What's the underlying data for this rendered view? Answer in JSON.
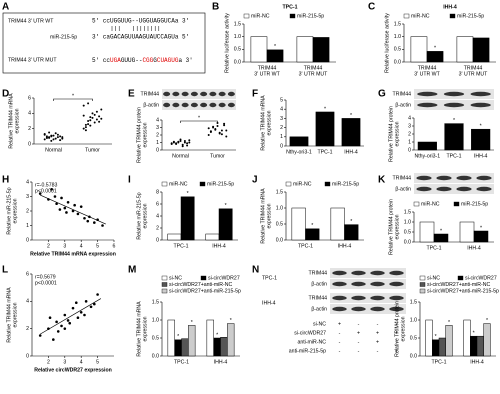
{
  "sequence_panel": {
    "label": "A",
    "wt_name": "TRIM44 3' UTR WT",
    "wt_sequence": "5' ccUGGUUG--UGGUAGGUCAa 3'",
    "mir_name": "miR-215-5p",
    "mir_sequence": "3' caGACAGUUAAGUAUCCAGUa 5'",
    "mut_name": "TRIM44 3' UTR MUT",
    "mut_sequence": [
      {
        "text": "5' cc"
      },
      {
        "text": "UGA",
        "mutated": true
      },
      {
        "text": "GUUG--"
      },
      {
        "text": "CGG",
        "mutated": true
      },
      {
        "text": "G"
      },
      {
        "text": "CUAGUG",
        "mutated": true
      },
      {
        "text": "a 3'"
      }
    ]
  },
  "chart_data": [
    {
      "type": "bar",
      "label": "B",
      "title": "TPC-1",
      "ylabel": [
        "Relative luciferase activity"
      ],
      "categories": [
        [
          "TRIM44",
          "3' UTR WT"
        ],
        [
          "TRIM44",
          "3' UTR MUT"
        ]
      ],
      "series": [
        {
          "name": "miR-NC",
          "color": "#ffffff",
          "values": [
            1.0,
            1.0
          ]
        },
        {
          "name": "miR-215-5p",
          "color": "#000000",
          "values": [
            0.48,
            0.97
          ],
          "significance": [
            "*",
            null
          ]
        }
      ],
      "ylim": [
        0,
        1.5
      ],
      "yticks": [
        {
          "value": 0,
          "label": "0.0"
        },
        0.5,
        {
          "value": 1,
          "label": "1.0"
        },
        1.5
      ]
    },
    {
      "type": "bar",
      "label": "C",
      "title": "IHH-4",
      "ylabel": [
        "Relative luciferase activity"
      ],
      "categories": [
        [
          "TRIM44",
          "3' UTR WT"
        ],
        [
          "TRIM44",
          "3' UTR MUT"
        ]
      ],
      "series": [
        {
          "name": "miR-NC",
          "color": "#ffffff",
          "values": [
            1.0,
            1.0
          ]
        },
        {
          "name": "miR-215-5p",
          "color": "#000000",
          "values": [
            0.42,
            0.95
          ],
          "significance": [
            "*",
            null
          ]
        }
      ],
      "ylim": [
        0,
        1.5
      ],
      "yticks": [
        {
          "value": 0,
          "label": "0.0"
        },
        0.5,
        {
          "value": 1,
          "label": "1.0"
        },
        1.5
      ]
    },
    {
      "type": "strip",
      "label": "D",
      "ylabel": [
        "Relative TRIM44 mRNA",
        "expression"
      ],
      "categories": [
        "Normal",
        "Tumor"
      ],
      "values": [
        [
          0.6,
          0.8,
          0.9,
          1.0,
          1.1,
          0.7,
          1.2,
          0.5,
          0.9,
          1.3,
          1.0,
          0.8,
          1.1,
          0.6,
          1.4,
          0.9,
          1.0,
          0.7,
          1.2,
          0.8,
          1.5,
          0.4
        ],
        [
          2.0,
          2.5,
          3.0,
          3.5,
          4.0,
          2.8,
          3.2,
          3.6,
          4.5,
          5.0,
          2.2,
          2.6,
          3.1,
          3.4,
          3.8,
          4.2,
          2.9,
          3.3,
          3.7,
          1.8,
          5.3,
          2.4
        ]
      ],
      "color": "#000000",
      "significance": "*",
      "ylim": [
        0,
        6
      ],
      "yticks": [
        0,
        2,
        4,
        6
      ]
    },
    {
      "type": "strip",
      "label": "E",
      "ylabel": [
        "Relative TRIM44 protein",
        "expression"
      ],
      "blot_rows": [
        "TRIM44",
        "β-actin"
      ],
      "categories": [
        "Normal",
        "Tumor"
      ],
      "values": [
        [
          0.8,
          1.0,
          0.9,
          1.1,
          1.2,
          0.7,
          1.0,
          0.6,
          1.3,
          0.9,
          1.1,
          0.8,
          1.0,
          1.4,
          0.5,
          1.2,
          0.9,
          1.0
        ],
        [
          2.0,
          2.5,
          3.0,
          2.8,
          3.2,
          2.2,
          2.6,
          3.5,
          1.8,
          2.9,
          2.4,
          3.1,
          2.7,
          3.6,
          2.3,
          2.1,
          3.3,
          2.6
        ]
      ],
      "color": "#000000",
      "significance": "*",
      "ylim": [
        0,
        4
      ],
      "yticks": [
        0,
        1,
        2,
        3,
        4
      ]
    },
    {
      "type": "bar",
      "label": "F",
      "ylabel": [
        "Relative TRIM44 mRNA",
        "expression"
      ],
      "categories": [
        "Nthy-ori3-1",
        "TPC-1",
        "IHH-4"
      ],
      "values": [
        1.0,
        3.7,
        3.0
      ],
      "color": "#000000",
      "significance": [
        null,
        "*",
        "*"
      ],
      "ylim": [
        0,
        5
      ],
      "yticks": [
        0,
        1,
        2,
        3,
        4,
        5
      ]
    },
    {
      "type": "bar",
      "label": "G",
      "ylabel": [
        "Relative TRIM44 protein",
        "expression"
      ],
      "blot_rows": [
        "TRIM44",
        "β-actin"
      ],
      "categories": [
        "Nthy-ori3-1",
        "TPC-1",
        "IHH-4"
      ],
      "values": [
        1.0,
        3.3,
        2.6
      ],
      "color": "#000000",
      "significance": [
        null,
        "*",
        "*"
      ],
      "ylim": [
        0,
        4
      ],
      "yticks": [
        0,
        1,
        2,
        3,
        4
      ]
    },
    {
      "type": "scatter",
      "label": "H",
      "ylabel": [
        "Relative miR-215-5p",
        "expression"
      ],
      "xlabel": "Relative TRIM44 mRNA expression",
      "stats": [
        "r=-0.5783",
        "p<0.0001"
      ],
      "x": [
        1.5,
        2.0,
        2.2,
        2.5,
        2.8,
        3.0,
        3.2,
        3.5,
        3.8,
        4.0,
        4.2,
        4.5,
        4.8,
        5.0,
        5.3,
        2.4,
        3.1,
        3.6,
        4.4,
        2.7
      ],
      "y": [
        3.2,
        2.8,
        3.5,
        2.5,
        2.9,
        2.2,
        2.6,
        2.0,
        1.8,
        2.3,
        1.5,
        1.6,
        1.2,
        1.4,
        1.0,
        3.0,
        1.9,
        2.4,
        1.3,
        2.1
      ],
      "trendline": {
        "x": [
          1.5,
          5.5
        ],
        "y": [
          3.1,
          1.1
        ]
      },
      "xlim": [
        1,
        6
      ],
      "xticks": [
        2,
        3,
        4,
        5,
        6
      ],
      "ylim": [
        0,
        4
      ],
      "yticks": [
        0,
        1,
        2,
        3,
        4
      ]
    },
    {
      "type": "bar",
      "label": "I",
      "ylabel": [
        "Relative miR-215-5p",
        "expression"
      ],
      "categories": [
        "TPC-1",
        "IHH-4"
      ],
      "series": [
        {
          "name": "miR-NC",
          "color": "#ffffff",
          "values": [
            1.0,
            1.0
          ]
        },
        {
          "name": "miR-215-5p",
          "color": "#000000",
          "values": [
            7.2,
            5.2
          ],
          "significance": [
            "*",
            "*"
          ]
        }
      ],
      "ylim": [
        0,
        8
      ],
      "yticks": [
        0,
        2,
        4,
        6,
        8
      ]
    },
    {
      "type": "bar",
      "label": "J",
      "ylabel": [
        "Relative TRIM44 mRNA",
        "expression"
      ],
      "categories": [
        "TPC-1",
        "IHH-4"
      ],
      "series": [
        {
          "name": "miR-NC",
          "color": "#ffffff",
          "values": [
            1.0,
            1.0
          ]
        },
        {
          "name": "miR-215-5p",
          "color": "#000000",
          "values": [
            0.35,
            0.48
          ],
          "significance": [
            "*",
            "*"
          ]
        }
      ],
      "ylim": [
        0,
        1.5
      ],
      "yticks": [
        {
          "value": 0,
          "label": "0.0"
        },
        0.5,
        {
          "value": 1,
          "label": "1.0"
        },
        1.5
      ]
    },
    {
      "type": "bar",
      "label": "K",
      "ylabel": [
        "Relative TRIM44 protein",
        "expression"
      ],
      "blot_rows": [
        "TRIM44",
        "β-actin"
      ],
      "categories": [
        "TPC-1",
        "IHH-4"
      ],
      "series": [
        {
          "name": "miR-NC",
          "color": "#ffffff",
          "values": [
            1.0,
            1.0
          ]
        },
        {
          "name": "miR-215-5p",
          "color": "#000000",
          "values": [
            0.4,
            0.55
          ],
          "significance": [
            "*",
            "*"
          ]
        }
      ],
      "ylim": [
        0,
        1.5
      ],
      "yticks": [
        {
          "value": 0,
          "label": "0.0"
        },
        0.5,
        {
          "value": 1,
          "label": "1.0"
        },
        1.5
      ]
    },
    {
      "type": "scatter",
      "label": "L",
      "ylabel": [
        "Relative TRIM44 mRNA",
        "expression"
      ],
      "xlabel": "Relative circWDR27 expression",
      "stats": [
        "r=0.5679",
        "p<0.0001"
      ],
      "x": [
        1.5,
        2.0,
        2.3,
        2.5,
        2.8,
        3.0,
        3.2,
        3.5,
        3.8,
        4.0,
        4.3,
        4.6,
        5.0,
        2.6,
        3.3,
        3.7,
        4.2,
        2.1,
        3.0,
        4.8
      ],
      "y": [
        1.5,
        2.0,
        1.2,
        2.5,
        2.2,
        3.0,
        2.6,
        3.5,
        2.8,
        3.2,
        4.0,
        3.6,
        4.5,
        1.8,
        2.4,
        3.9,
        3.0,
        2.8,
        2.0,
        3.8
      ],
      "trendline": {
        "x": [
          1.5,
          5.2
        ],
        "y": [
          1.6,
          4.2
        ]
      },
      "xlim": [
        1,
        6
      ],
      "xticks": [
        2,
        3,
        4,
        5
      ],
      "ylim": [
        0,
        6
      ],
      "yticks": [
        0,
        2,
        4,
        6
      ]
    },
    {
      "type": "bar",
      "label": "M",
      "ylabel": [
        "Relative TRIM44 mRNA",
        "expression"
      ],
      "categories": [
        "TPC-1",
        "IHH-4"
      ],
      "series": [
        {
          "name": "si-NC",
          "color": "#ffffff",
          "values": [
            1.0,
            1.0
          ]
        },
        {
          "name": "si-circWDR27",
          "color": "#000000",
          "values": [
            0.45,
            0.5
          ],
          "significance": [
            "*",
            "*"
          ]
        },
        {
          "name": "si-circWDR27+anti-miR-NC",
          "color": "#555555",
          "values": [
            0.48,
            0.52
          ]
        },
        {
          "name": "si-circWDR27+anti-miR-215-5p",
          "color": "#cccccc",
          "values": [
            0.85,
            0.9
          ],
          "significance": [
            "*",
            "*"
          ]
        }
      ],
      "ylim": [
        0,
        1.5
      ],
      "yticks": [
        {
          "value": 0,
          "label": "0.0"
        },
        0.5,
        {
          "value": 1,
          "label": "1.0"
        },
        1.5
      ]
    },
    {
      "type": "bar",
      "label": "N",
      "ylabel": [
        "Relative TRIM44 protein",
        "expression"
      ],
      "blot_groups": [
        {
          "cell": "TPC-1",
          "rows": [
            "TRIM44",
            "β-actin"
          ]
        },
        {
          "cell": "IHH-4",
          "rows": [
            "TRIM44",
            "β-actin"
          ]
        }
      ],
      "treatments": [
        {
          "name": "si-NC",
          "signs": [
            "+",
            "-",
            "-",
            "-"
          ]
        },
        {
          "name": "si-circWDR27",
          "signs": [
            "-",
            "+",
            "+",
            "+"
          ]
        },
        {
          "name": "anti-miR-NC",
          "signs": [
            "-",
            "-",
            "+",
            "-"
          ]
        },
        {
          "name": "anti-miR-215-5p",
          "signs": [
            "-",
            "-",
            "-",
            "+"
          ]
        }
      ],
      "categories": [
        "TPC-1",
        "IHH-4"
      ],
      "series": [
        {
          "name": "si-NC",
          "color": "#ffffff",
          "values": [
            1.0,
            1.0
          ]
        },
        {
          "name": "si-circWDR27",
          "color": "#000000",
          "values": [
            0.45,
            0.55
          ],
          "significance": [
            "*",
            "*"
          ]
        },
        {
          "name": "si-circWDR27+anti-miR-NC",
          "color": "#555555",
          "values": [
            0.5,
            0.55
          ]
        },
        {
          "name": "si-circWDR27+anti-miR-215-5p",
          "color": "#cccccc",
          "values": [
            0.85,
            0.9
          ],
          "significance": [
            "*",
            "*"
          ]
        }
      ],
      "ylim": [
        0,
        1.5
      ],
      "yticks": [
        {
          "value": 0,
          "label": "0.0"
        },
        0.5,
        {
          "value": 1,
          "label": "1.0"
        },
        1.5
      ]
    }
  ]
}
